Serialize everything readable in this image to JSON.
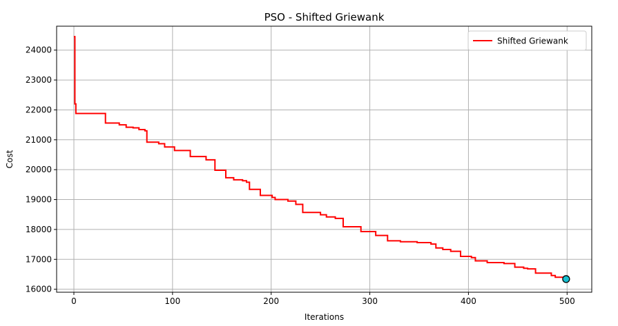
{
  "chart_data": {
    "type": "line",
    "title": "PSO - Shifted Griewank",
    "xlabel": "Iterations",
    "ylabel": "Cost",
    "xlim": [
      -17.5,
      525
    ],
    "ylim": [
      15900,
      24800
    ],
    "x_ticks": [
      0,
      100,
      200,
      300,
      400,
      500
    ],
    "y_ticks": [
      16000,
      17000,
      18000,
      19000,
      20000,
      21000,
      22000,
      23000,
      24000
    ],
    "grid": true,
    "legend_position": "top-right",
    "series": [
      {
        "name": "Shifted Griewank",
        "color": "#ff0000",
        "step_points": [
          [
            0,
            24450
          ],
          [
            1,
            22200
          ],
          [
            2,
            21880
          ],
          [
            32,
            21560
          ],
          [
            46,
            21500
          ],
          [
            53,
            21420
          ],
          [
            60,
            21400
          ],
          [
            66,
            21340
          ],
          [
            72,
            21300
          ],
          [
            74,
            20920
          ],
          [
            86,
            20870
          ],
          [
            92,
            20760
          ],
          [
            102,
            20640
          ],
          [
            118,
            20440
          ],
          [
            134,
            20330
          ],
          [
            143,
            19980
          ],
          [
            154,
            19730
          ],
          [
            162,
            19660
          ],
          [
            171,
            19630
          ],
          [
            175,
            19580
          ],
          [
            178,
            19340
          ],
          [
            189,
            19140
          ],
          [
            201,
            19070
          ],
          [
            204,
            19000
          ],
          [
            217,
            18950
          ],
          [
            225,
            18840
          ],
          [
            232,
            18570
          ],
          [
            250,
            18490
          ],
          [
            256,
            18420
          ],
          [
            265,
            18370
          ],
          [
            273,
            18090
          ],
          [
            291,
            17930
          ],
          [
            306,
            17800
          ],
          [
            318,
            17620
          ],
          [
            331,
            17590
          ],
          [
            348,
            17560
          ],
          [
            362,
            17510
          ],
          [
            367,
            17380
          ],
          [
            374,
            17330
          ],
          [
            382,
            17270
          ],
          [
            392,
            17100
          ],
          [
            403,
            17060
          ],
          [
            407,
            16950
          ],
          [
            419,
            16890
          ],
          [
            436,
            16860
          ],
          [
            447,
            16740
          ],
          [
            456,
            16700
          ],
          [
            460,
            16680
          ],
          [
            468,
            16540
          ],
          [
            484,
            16460
          ],
          [
            488,
            16400
          ],
          [
            499,
            16350
          ]
        ]
      }
    ],
    "final_point": {
      "x": 499,
      "y": 16340,
      "color": "#17becf"
    }
  }
}
